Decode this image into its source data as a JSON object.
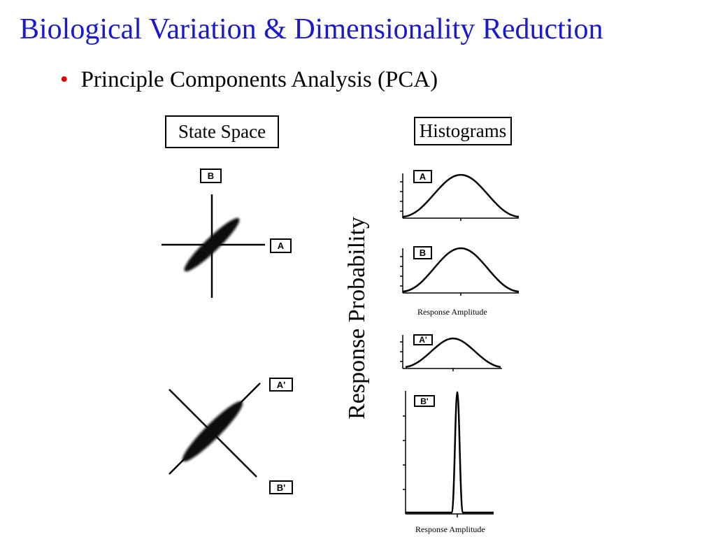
{
  "slide": {
    "title": "Biological Variation & Dimensionality Reduction",
    "bullets": [
      "Principle Components Analysis (PCA)"
    ]
  },
  "figure": {
    "state_space_title": "State Space",
    "histograms_title": "Histograms",
    "y_axis_label": "Response Probability",
    "x_axis_label": "Response Amplitude",
    "state_space_plots": [
      {
        "axes": [
          "A",
          "B"
        ],
        "rotated": false
      },
      {
        "axes": [
          "A'",
          "B'"
        ],
        "rotated": true
      }
    ],
    "histograms": [
      {
        "label": "A",
        "shape": "broad"
      },
      {
        "label": "B",
        "shape": "broad"
      },
      {
        "label": "A'",
        "shape": "broad"
      },
      {
        "label": "B'",
        "shape": "narrow"
      }
    ]
  },
  "colors": {
    "title": "#1a1acc",
    "bullet": "#dd0000",
    "ink": "#000000"
  }
}
